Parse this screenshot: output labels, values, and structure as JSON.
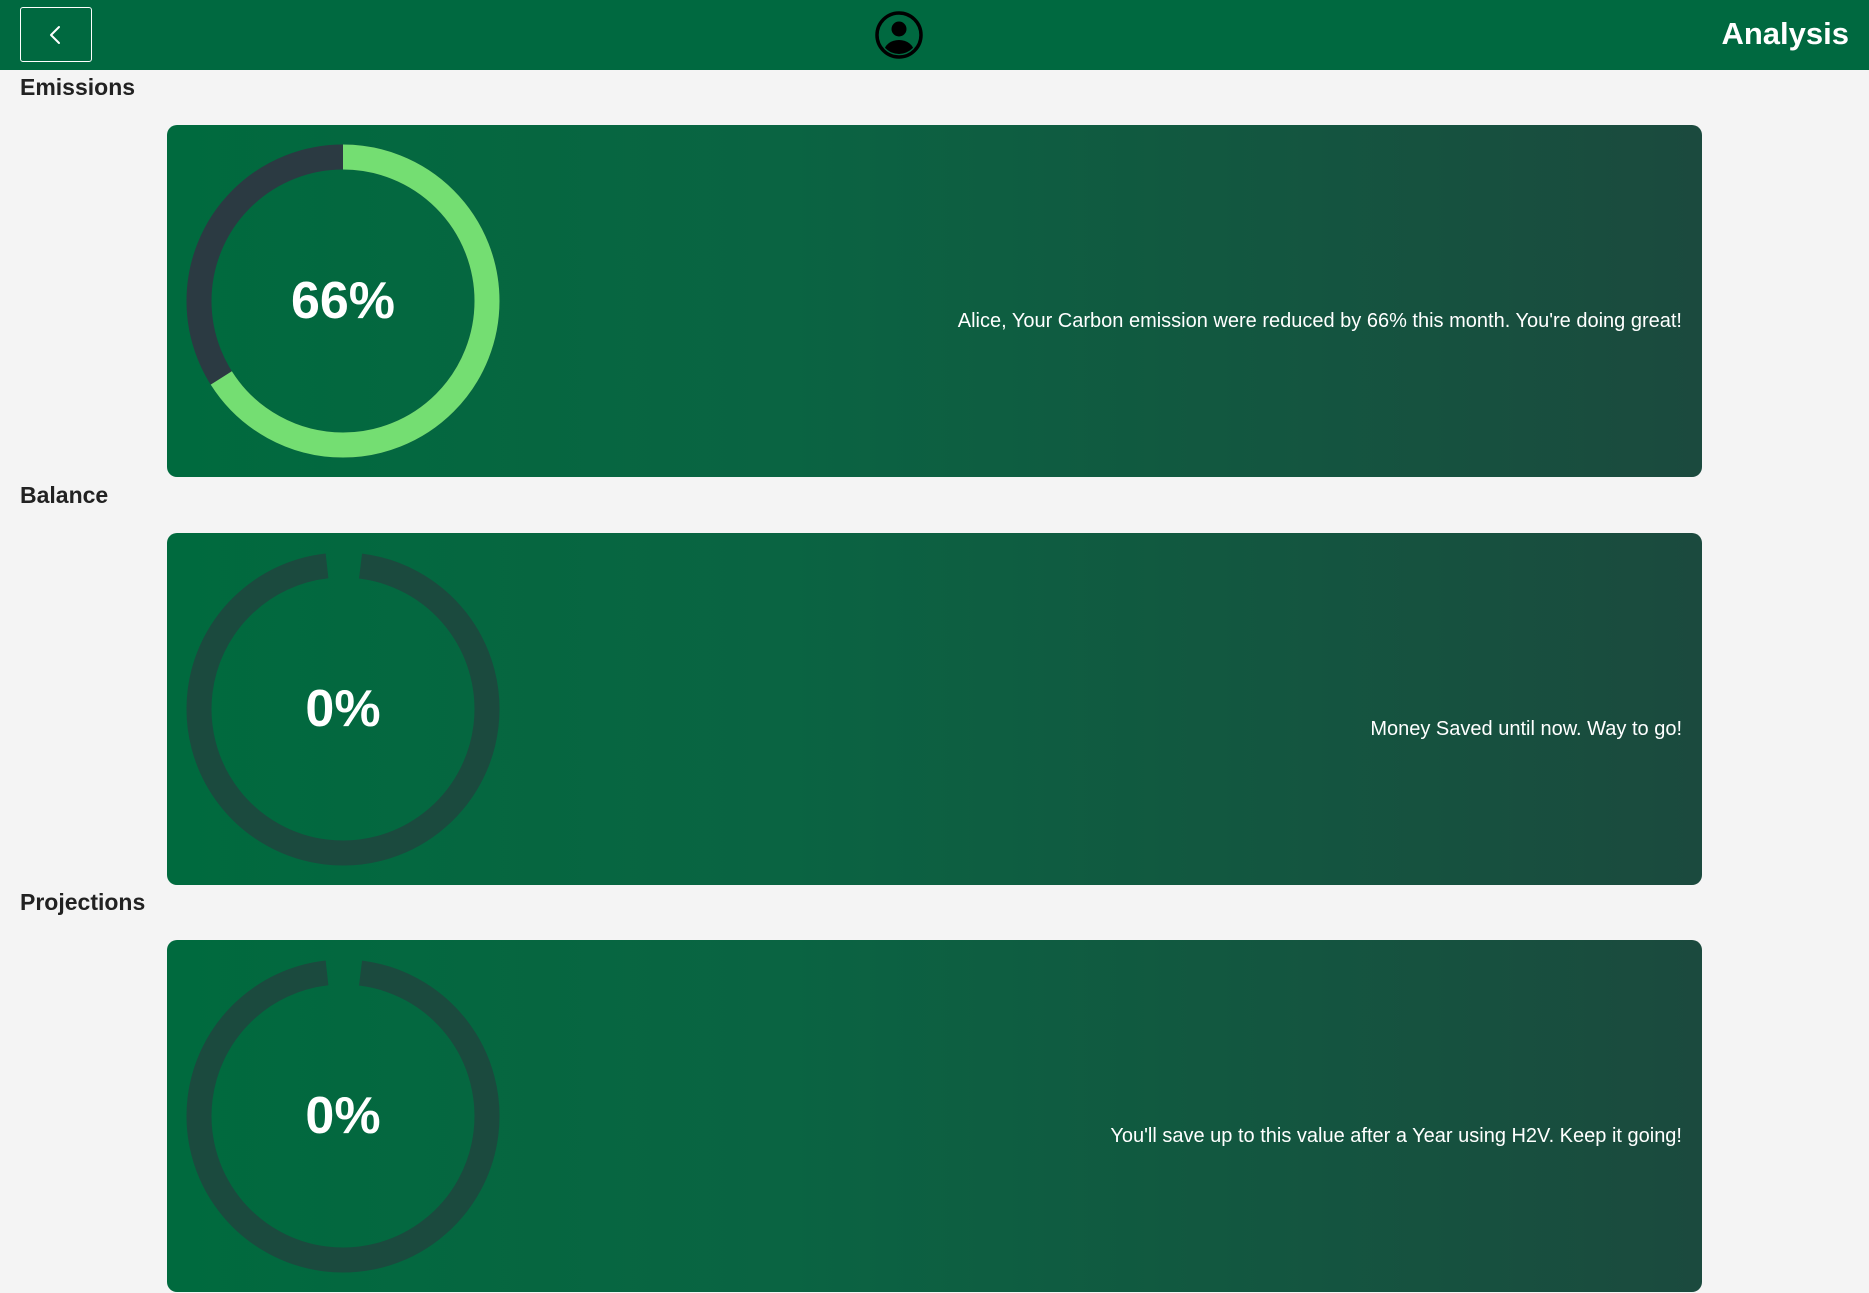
{
  "header": {
    "title": "Analysis",
    "back_icon": "chevron-left-icon",
    "profile_icon": "user-circle-icon",
    "background_color": "#006940"
  },
  "sections": [
    {
      "title": "Emissions",
      "value_label": "66%",
      "progress_percent": 66,
      "message": "Alice, Your Carbon emission were reduced by 66% this month. You're doing great!"
    },
    {
      "title": "Balance",
      "value_label": "0%",
      "progress_percent": 0,
      "message": "Money Saved until now. Way to go!"
    },
    {
      "title": "Projections",
      "value_label": "0%",
      "progress_percent": 0,
      "message": "You'll save up to this value after a Year using H2V. Keep it going!"
    }
  ],
  "colors": {
    "progress": "#74de72",
    "track_active": "#2b3a42",
    "track_idle": "#1b4a3e",
    "card_start": "#006a3e",
    "card_end": "#1b4a3e"
  }
}
